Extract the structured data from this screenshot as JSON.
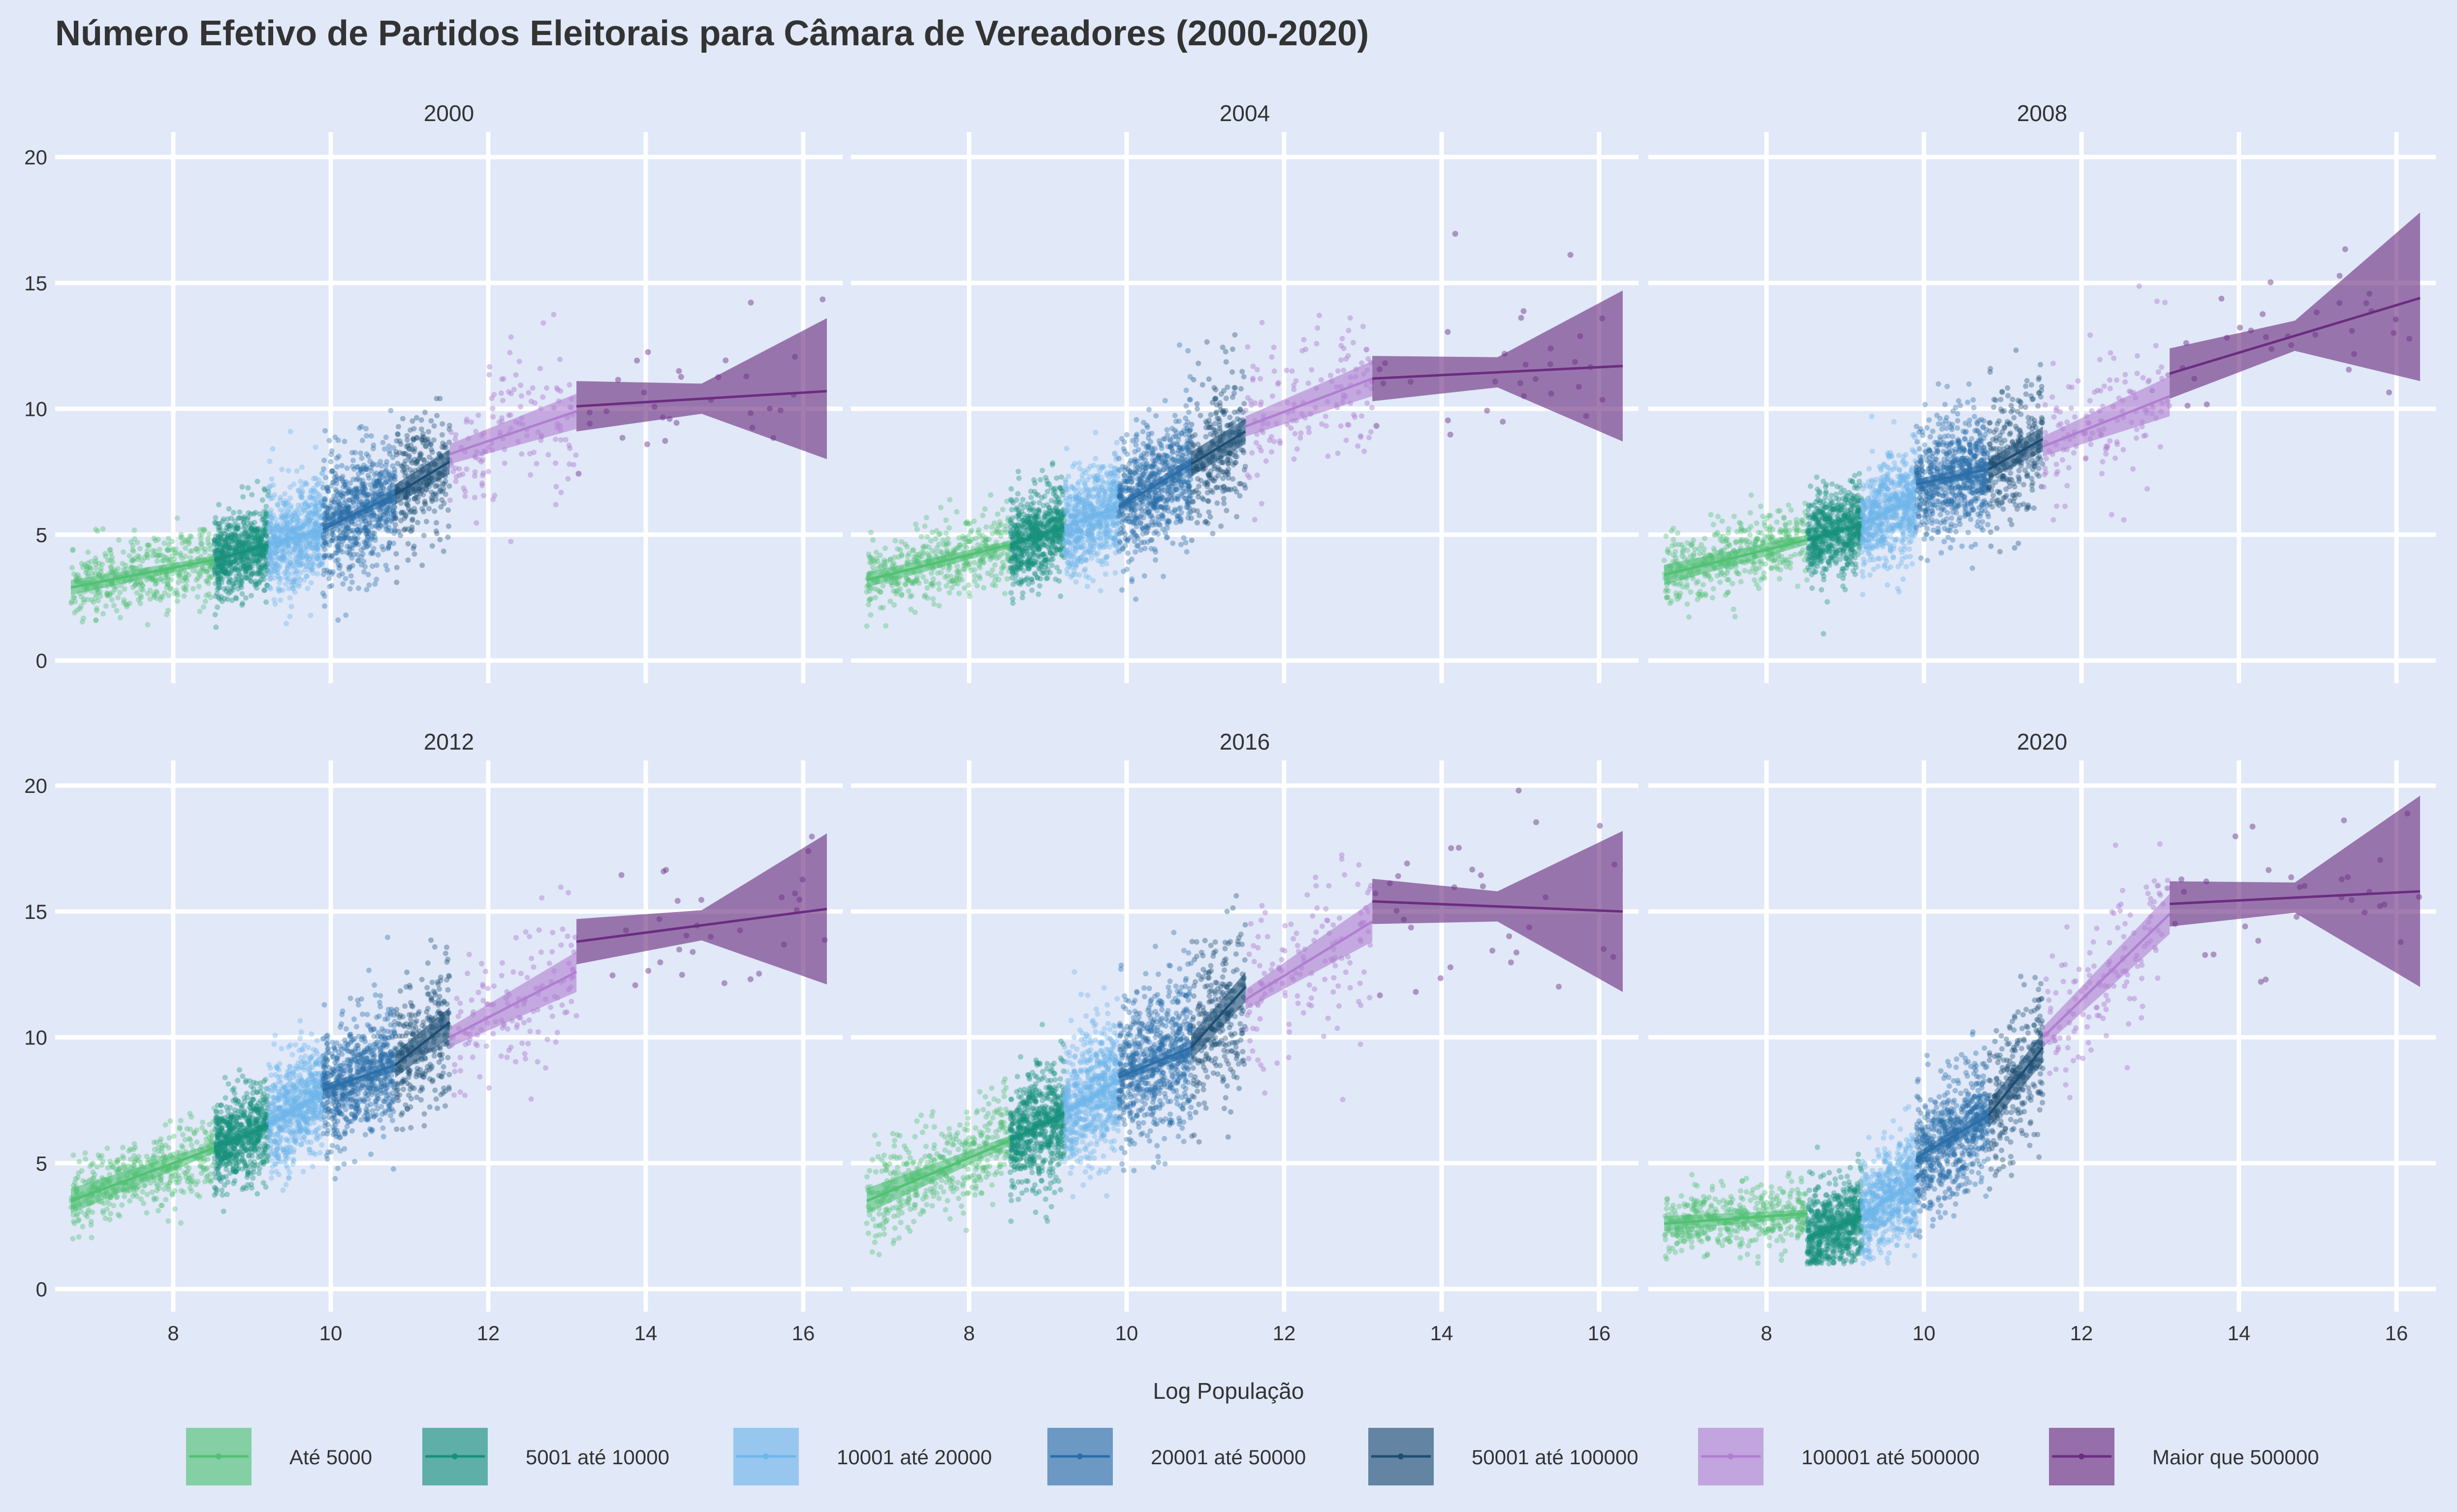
{
  "chart_data": {
    "type": "scatter",
    "title": "Número Efetivo de Partidos Eleitorais para Câmara de Vereadores (2000-2020)",
    "xlabel": "Log População",
    "ylabel": "",
    "xlim": [
      6.5,
      16.5
    ],
    "ylim": [
      -0.9,
      21
    ],
    "x_ticks": [
      8,
      10,
      12,
      14,
      16
    ],
    "y_ticks": [
      0,
      5,
      10,
      15,
      20
    ],
    "grid": true,
    "legend_position": "bottom",
    "facets": [
      "2000",
      "2004",
      "2008",
      "2012",
      "2016",
      "2020"
    ],
    "groups": [
      {
        "name": "Até 5000",
        "color": "#52c174",
        "x_range": [
          6.7,
          8.52
        ]
      },
      {
        "name": "5001 até 10000",
        "color": "#17917c",
        "x_range": [
          8.52,
          9.21
        ]
      },
      {
        "name": "10001 até 20000",
        "color": "#6fb6ea",
        "x_range": [
          9.21,
          9.9
        ]
      },
      {
        "name": "20001 até 50000",
        "color": "#2b6ea8",
        "x_range": [
          9.9,
          10.82
        ]
      },
      {
        "name": "50001 até 100000",
        "color": "#1e4e73",
        "x_range": [
          10.82,
          11.51
        ]
      },
      {
        "name": "100001 até 500000",
        "color": "#b07fd0",
        "x_range": [
          11.51,
          13.12
        ]
      },
      {
        "name": "Maior que 500000",
        "color": "#6b2d80",
        "x_range": [
          13.12,
          16.3
        ]
      }
    ],
    "panels": [
      {
        "facet": "2000",
        "points_per_group": [
          450,
          650,
          650,
          700,
          280,
          140,
          30
        ],
        "fits": [
          {
            "x": [
              6.7,
              8.52
            ],
            "y": [
              2.9,
              4.0
            ],
            "lo": [
              2.6,
              3.85
            ],
            "hi": [
              3.2,
              4.15
            ]
          },
          {
            "x": [
              8.52,
              9.21
            ],
            "y": [
              4.0,
              4.6
            ],
            "lo": [
              3.9,
              4.45
            ],
            "hi": [
              4.1,
              4.75
            ]
          },
          {
            "x": [
              9.21,
              9.9
            ],
            "y": [
              4.6,
              5.2
            ],
            "lo": [
              4.5,
              5.05
            ],
            "hi": [
              4.7,
              5.35
            ]
          },
          {
            "x": [
              9.9,
              10.82
            ],
            "y": [
              5.2,
              6.6
            ],
            "lo": [
              5.05,
              6.35
            ],
            "hi": [
              5.35,
              6.85
            ]
          },
          {
            "x": [
              10.82,
              11.51
            ],
            "y": [
              6.6,
              7.9
            ],
            "lo": [
              6.2,
              7.4
            ],
            "hi": [
              7.0,
              8.4
            ]
          },
          {
            "x": [
              11.51,
              13.12
            ],
            "y": [
              8.2,
              9.9
            ],
            "lo": [
              7.8,
              9.2
            ],
            "hi": [
              8.6,
              10.6
            ]
          },
          {
            "x": [
              13.12,
              16.3
            ],
            "y": [
              10.1,
              10.7
            ],
            "lo": [
              9.1,
              8.0
            ],
            "hi": [
              11.1,
              13.6
            ]
          }
        ]
      },
      {
        "facet": "2004",
        "points_per_group": [
          450,
          650,
          650,
          700,
          280,
          140,
          30
        ],
        "fits": [
          {
            "x": [
              6.7,
              8.52
            ],
            "y": [
              3.2,
              4.6
            ],
            "lo": [
              2.9,
              4.45
            ],
            "hi": [
              3.5,
              4.75
            ]
          },
          {
            "x": [
              8.52,
              9.21
            ],
            "y": [
              4.6,
              5.3
            ],
            "lo": [
              4.5,
              5.15
            ],
            "hi": [
              4.7,
              5.45
            ]
          },
          {
            "x": [
              9.21,
              9.9
            ],
            "y": [
              5.3,
              6.1
            ],
            "lo": [
              5.2,
              5.95
            ],
            "hi": [
              5.4,
              6.25
            ]
          },
          {
            "x": [
              9.9,
              10.82
            ],
            "y": [
              6.1,
              7.8
            ],
            "lo": [
              5.95,
              7.55
            ],
            "hi": [
              6.25,
              8.05
            ]
          },
          {
            "x": [
              10.82,
              11.51
            ],
            "y": [
              7.8,
              9.1
            ],
            "lo": [
              7.3,
              8.6
            ],
            "hi": [
              8.3,
              9.6
            ]
          },
          {
            "x": [
              11.51,
              13.12
            ],
            "y": [
              9.3,
              11.2
            ],
            "lo": [
              8.9,
              10.5
            ],
            "hi": [
              9.7,
              11.9
            ]
          },
          {
            "x": [
              13.12,
              16.3
            ],
            "y": [
              11.2,
              11.7
            ],
            "lo": [
              10.3,
              8.7
            ],
            "hi": [
              12.1,
              14.7
            ]
          }
        ]
      },
      {
        "facet": "2008",
        "points_per_group": [
          450,
          650,
          650,
          700,
          280,
          140,
          30
        ],
        "fits": [
          {
            "x": [
              6.7,
              8.52
            ],
            "y": [
              3.4,
              4.8
            ],
            "lo": [
              3.0,
              4.6
            ],
            "hi": [
              3.8,
              5.0
            ]
          },
          {
            "x": [
              8.52,
              9.21
            ],
            "y": [
              4.8,
              5.4
            ],
            "lo": [
              4.7,
              5.25
            ],
            "hi": [
              4.9,
              5.55
            ]
          },
          {
            "x": [
              9.21,
              9.9
            ],
            "y": [
              5.4,
              6.5
            ],
            "lo": [
              5.3,
              6.35
            ],
            "hi": [
              5.5,
              6.65
            ]
          },
          {
            "x": [
              9.9,
              10.82
            ],
            "y": [
              7.0,
              7.6
            ],
            "lo": [
              6.8,
              7.35
            ],
            "hi": [
              7.2,
              7.85
            ]
          },
          {
            "x": [
              10.82,
              11.51
            ],
            "y": [
              7.6,
              8.8
            ],
            "lo": [
              7.2,
              8.3
            ],
            "hi": [
              8.0,
              9.3
            ]
          },
          {
            "x": [
              11.51,
              13.12
            ],
            "y": [
              8.5,
              10.5
            ],
            "lo": [
              8.1,
              9.7
            ],
            "hi": [
              8.9,
              11.3
            ]
          },
          {
            "x": [
              13.12,
              16.3
            ],
            "y": [
              11.4,
              14.4
            ],
            "lo": [
              10.4,
              11.1
            ],
            "hi": [
              12.4,
              17.8
            ]
          }
        ]
      },
      {
        "facet": "2012",
        "points_per_group": [
          450,
          650,
          650,
          700,
          280,
          140,
          30
        ],
        "fits": [
          {
            "x": [
              6.7,
              8.52
            ],
            "y": [
              3.5,
              5.6
            ],
            "lo": [
              3.0,
              5.4
            ],
            "hi": [
              4.0,
              5.8
            ]
          },
          {
            "x": [
              8.52,
              9.21
            ],
            "y": [
              5.6,
              6.5
            ],
            "lo": [
              5.45,
              6.35
            ],
            "hi": [
              5.75,
              6.65
            ]
          },
          {
            "x": [
              9.21,
              9.9
            ],
            "y": [
              6.5,
              7.8
            ],
            "lo": [
              6.35,
              7.65
            ],
            "hi": [
              6.65,
              7.95
            ]
          },
          {
            "x": [
              9.9,
              10.82
            ],
            "y": [
              7.9,
              8.9
            ],
            "lo": [
              7.7,
              8.65
            ],
            "hi": [
              8.1,
              9.15
            ]
          },
          {
            "x": [
              10.82,
              11.51
            ],
            "y": [
              8.9,
              10.6
            ],
            "lo": [
              8.4,
              10.0
            ],
            "hi": [
              9.4,
              11.2
            ]
          },
          {
            "x": [
              11.51,
              13.12
            ],
            "y": [
              10.0,
              12.6
            ],
            "lo": [
              9.6,
              11.8
            ],
            "hi": [
              10.4,
              13.4
            ]
          },
          {
            "x": [
              13.12,
              16.3
            ],
            "y": [
              13.8,
              15.1
            ],
            "lo": [
              12.9,
              12.1
            ],
            "hi": [
              14.7,
              18.1
            ]
          }
        ]
      },
      {
        "facet": "2016",
        "points_per_group": [
          450,
          650,
          650,
          700,
          280,
          140,
          30
        ],
        "fits": [
          {
            "x": [
              6.7,
              8.52
            ],
            "y": [
              3.5,
              5.9
            ],
            "lo": [
              3.0,
              5.7
            ],
            "hi": [
              4.0,
              6.1
            ]
          },
          {
            "x": [
              8.52,
              9.21
            ],
            "y": [
              5.9,
              7.0
            ],
            "lo": [
              5.75,
              6.85
            ],
            "hi": [
              6.05,
              7.15
            ]
          },
          {
            "x": [
              9.21,
              9.9
            ],
            "y": [
              7.0,
              8.3
            ],
            "lo": [
              6.85,
              8.15
            ],
            "hi": [
              7.15,
              8.45
            ]
          },
          {
            "x": [
              9.9,
              10.82
            ],
            "y": [
              8.4,
              9.6
            ],
            "lo": [
              8.2,
              9.3
            ],
            "hi": [
              8.6,
              9.9
            ]
          },
          {
            "x": [
              10.82,
              11.51
            ],
            "y": [
              9.6,
              12.0
            ],
            "lo": [
              9.1,
              11.4
            ],
            "hi": [
              10.1,
              12.6
            ]
          },
          {
            "x": [
              11.51,
              13.12
            ],
            "y": [
              11.5,
              14.6
            ],
            "lo": [
              11.1,
              13.8
            ],
            "hi": [
              11.9,
              15.4
            ]
          },
          {
            "x": [
              13.12,
              16.3
            ],
            "y": [
              15.4,
              15.0
            ],
            "lo": [
              14.5,
              11.8
            ],
            "hi": [
              16.3,
              18.2
            ]
          }
        ]
      },
      {
        "facet": "2020",
        "points_per_group": [
          450,
          650,
          650,
          700,
          280,
          140,
          30
        ],
        "fits": [
          {
            "x": [
              6.7,
              8.52
            ],
            "y": [
              2.6,
              3.0
            ],
            "lo": [
              2.3,
              2.85
            ],
            "hi": [
              2.9,
              3.15
            ]
          },
          {
            "x": [
              8.52,
              9.21
            ],
            "y": [
              2.0,
              2.9
            ],
            "lo": [
              1.85,
              2.75
            ],
            "hi": [
              2.15,
              3.05
            ]
          },
          {
            "x": [
              9.21,
              9.9
            ],
            "y": [
              2.9,
              4.3
            ],
            "lo": [
              2.75,
              4.15
            ],
            "hi": [
              3.05,
              4.45
            ]
          },
          {
            "x": [
              9.9,
              10.82
            ],
            "y": [
              5.2,
              6.9
            ],
            "lo": [
              5.0,
              6.6
            ],
            "hi": [
              5.4,
              7.2
            ]
          },
          {
            "x": [
              10.82,
              11.51
            ],
            "y": [
              6.9,
              9.6
            ],
            "lo": [
              6.4,
              9.0
            ],
            "hi": [
              7.4,
              10.2
            ]
          },
          {
            "x": [
              11.51,
              13.12
            ],
            "y": [
              10.0,
              14.9
            ],
            "lo": [
              9.6,
              14.1
            ],
            "hi": [
              10.4,
              15.7
            ]
          },
          {
            "x": [
              13.12,
              16.3
            ],
            "y": [
              15.3,
              15.8
            ],
            "lo": [
              14.4,
              12.0
            ],
            "hi": [
              16.2,
              19.6
            ]
          }
        ]
      }
    ]
  }
}
